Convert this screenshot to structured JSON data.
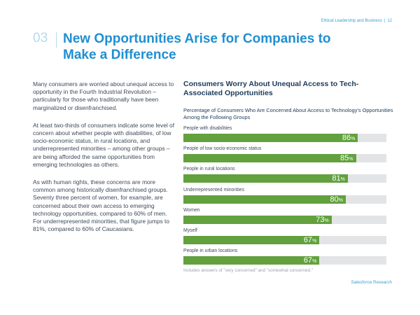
{
  "header": {
    "section": "Ethical Leadership and Business",
    "page_number": "12"
  },
  "title": {
    "number": "03",
    "line1": "New Opportunities Arise for Companies to",
    "line2": "Make a Difference"
  },
  "body": {
    "paragraphs": [
      "Many consumers are worried about unequal access to opportunity in the Fourth Industrial Revolution – particularly for those who traditionally have been marginalized or disenfranchised.",
      "At least two-thirds of consumers indicate some level of concern about whether people with disabilities, of low socio-economic status, in rural locations, and underrepresented minorities – among other groups – are being afforded the same opportunities from emerging technologies as others.",
      "As with human rights, these concerns are more common among historically disenfranchised groups. Seventy three percent of women, for example, are concerned about their own access to emerging technology opportunities, compared to 60% of men. For underrepresented minorities, that figure jumps to 81%, compared to 60% of Caucasians."
    ]
  },
  "chart_data": {
    "type": "bar",
    "orientation": "horizontal",
    "title": "Consumers Worry About Unequal Access to Tech-Associated Opportunities",
    "subtitle": "Percentage of Consumers Who Are Concerned About Access to Technology's Opportunities Among the Following Groups",
    "categories": [
      "People with disabilities",
      "People of low socio-economic status",
      "People in rural locations",
      "Underrepresented minorities",
      "Women",
      "Myself",
      "People in urban locations"
    ],
    "values": [
      86,
      85,
      81,
      80,
      73,
      67,
      67
    ],
    "value_suffix": "%",
    "xlim": [
      0,
      100
    ],
    "footnote": "Includes answers of \"very concerned\" and \"somewhat concerned.\"",
    "bar_color": "#62a13e",
    "track_color": "#e2e4e6"
  },
  "source": "Salesforce Research"
}
